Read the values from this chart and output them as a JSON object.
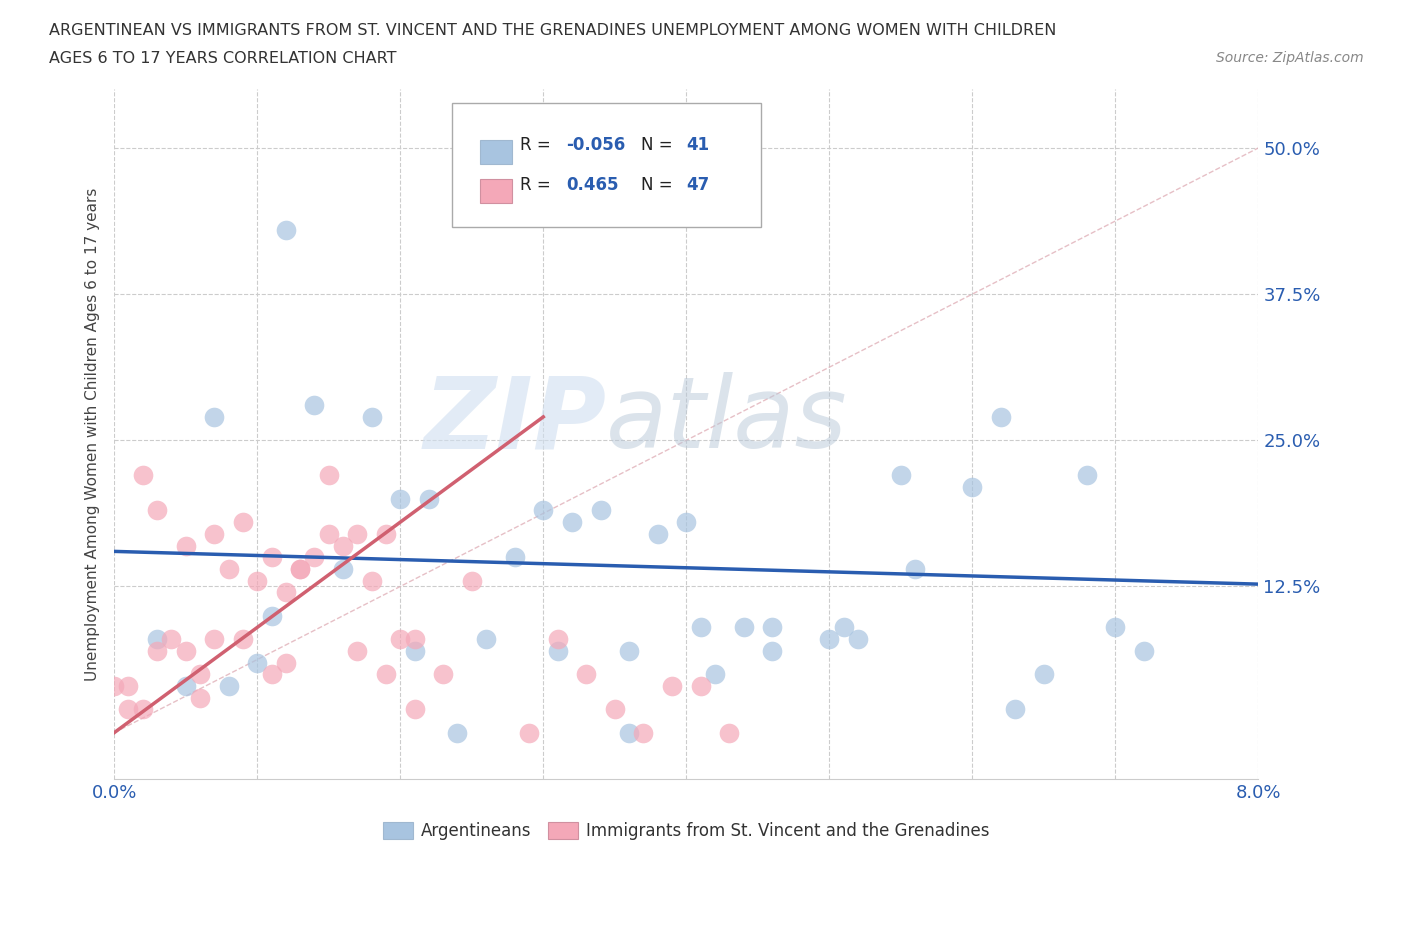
{
  "title_line1": "ARGENTINEAN VS IMMIGRANTS FROM ST. VINCENT AND THE GRENADINES UNEMPLOYMENT AMONG WOMEN WITH CHILDREN",
  "title_line2": "AGES 6 TO 17 YEARS CORRELATION CHART",
  "source": "Source: ZipAtlas.com",
  "ylabel": "Unemployment Among Women with Children Ages 6 to 17 years",
  "xlim": [
    0.0,
    0.08
  ],
  "ylim": [
    -0.04,
    0.55
  ],
  "xticks": [
    0.0,
    0.01,
    0.02,
    0.03,
    0.04,
    0.05,
    0.06,
    0.07,
    0.08
  ],
  "xtick_labels": [
    "0.0%",
    "",
    "",
    "",
    "",
    "",
    "",
    "",
    "8.0%"
  ],
  "ytick_positions": [
    0.125,
    0.25,
    0.375,
    0.5
  ],
  "ytick_labels": [
    "12.5%",
    "25.0%",
    "37.5%",
    "50.0%"
  ],
  "blue_color": "#a8c4e0",
  "pink_color": "#f4a8b8",
  "blue_line_color": "#2a5db0",
  "pink_line_color": "#d06070",
  "R_blue": -0.056,
  "N_blue": 41,
  "R_pink": 0.465,
  "N_pink": 47,
  "legend_label_blue": "Argentineans",
  "legend_label_pink": "Immigrants from St. Vincent and the Grenadines",
  "watermark_left": "ZIP",
  "watermark_right": "atlas",
  "blue_scatter_x": [
    0.005,
    0.012,
    0.008,
    0.01,
    0.014,
    0.018,
    0.02,
    0.022,
    0.024,
    0.028,
    0.03,
    0.032,
    0.034,
    0.036,
    0.038,
    0.04,
    0.042,
    0.044,
    0.05,
    0.052,
    0.055,
    0.046,
    0.06,
    0.062,
    0.065,
    0.068,
    0.003,
    0.007,
    0.011,
    0.016,
    0.021,
    0.026,
    0.031,
    0.036,
    0.041,
    0.046,
    0.051,
    0.056,
    0.063,
    0.07,
    0.072
  ],
  "blue_scatter_y": [
    0.04,
    0.43,
    0.04,
    0.06,
    0.28,
    0.27,
    0.2,
    0.2,
    0.0,
    0.15,
    0.19,
    0.18,
    0.19,
    0.0,
    0.17,
    0.18,
    0.05,
    0.09,
    0.08,
    0.08,
    0.22,
    0.09,
    0.21,
    0.27,
    0.05,
    0.22,
    0.08,
    0.27,
    0.1,
    0.14,
    0.07,
    0.08,
    0.07,
    0.07,
    0.09,
    0.07,
    0.09,
    0.14,
    0.02,
    0.09,
    0.07
  ],
  "pink_scatter_x": [
    0.0,
    0.001,
    0.002,
    0.003,
    0.004,
    0.005,
    0.006,
    0.007,
    0.008,
    0.009,
    0.01,
    0.011,
    0.012,
    0.013,
    0.014,
    0.015,
    0.016,
    0.017,
    0.018,
    0.019,
    0.02,
    0.021,
    0.001,
    0.003,
    0.005,
    0.007,
    0.009,
    0.011,
    0.013,
    0.015,
    0.017,
    0.019,
    0.021,
    0.023,
    0.025,
    0.027,
    0.029,
    0.031,
    0.033,
    0.035,
    0.037,
    0.039,
    0.041,
    0.043,
    0.002,
    0.006,
    0.012
  ],
  "pink_scatter_y": [
    0.04,
    0.04,
    0.22,
    0.19,
    0.08,
    0.16,
    0.05,
    0.17,
    0.14,
    0.18,
    0.13,
    0.05,
    0.12,
    0.14,
    0.15,
    0.17,
    0.16,
    0.17,
    0.13,
    0.17,
    0.08,
    0.02,
    0.02,
    0.07,
    0.07,
    0.08,
    0.08,
    0.15,
    0.14,
    0.22,
    0.07,
    0.05,
    0.08,
    0.05,
    0.13,
    0.47,
    0.0,
    0.08,
    0.05,
    0.02,
    0.0,
    0.04,
    0.04,
    0.0,
    0.02,
    0.03,
    0.06
  ],
  "blue_line_x0": 0.0,
  "blue_line_x1": 0.08,
  "blue_line_y0": 0.155,
  "blue_line_y1": 0.127,
  "pink_line_x0": 0.0,
  "pink_line_x1": 0.03,
  "pink_line_y0": 0.0,
  "pink_line_y1": 0.27,
  "diag_line_x0": 0.0,
  "diag_line_x1": 0.08,
  "diag_line_y0": 0.0,
  "diag_line_y1": 0.5,
  "background_color": "#ffffff",
  "grid_color": "#cccccc"
}
